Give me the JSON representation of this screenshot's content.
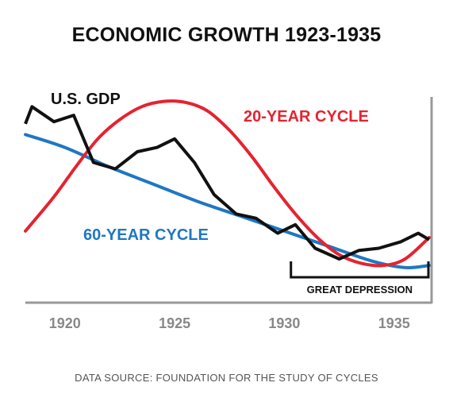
{
  "chart_data": {
    "type": "line",
    "title": "ECONOMIC GROWTH 1923-1935",
    "source": "DATA SOURCE: FOUNDATION FOR THE STUDY OF CYCLES",
    "x_ticks": [
      "1920",
      "1925",
      "1930",
      "1935"
    ],
    "x_tick_values": [
      1920,
      1925,
      1930,
      1935
    ],
    "xlim": [
      1918.2,
      1936.6
    ],
    "ylim": [
      0,
      10
    ],
    "grid": false,
    "legend": "inline labels",
    "series": [
      {
        "name": "U.S. GDP",
        "color": "#111111",
        "x": [
          1918.2,
          1918.5,
          1919.5,
          1920.4,
          1921.3,
          1922.3,
          1923.3,
          1924.2,
          1925.0,
          1925.9,
          1926.8,
          1927.8,
          1928.7,
          1929.7,
          1930.5,
          1931.4,
          1932.5,
          1933.4,
          1934.3,
          1935.3,
          1936.1,
          1936.6
        ],
        "values": [
          8.3,
          9.1,
          8.4,
          8.7,
          6.5,
          6.2,
          7.0,
          7.2,
          7.6,
          6.5,
          5.0,
          4.1,
          3.9,
          3.2,
          3.6,
          2.5,
          2.0,
          2.4,
          2.5,
          2.8,
          3.2,
          2.9
        ]
      },
      {
        "name": "20-YEAR CYCLE",
        "color": "#e52330",
        "x": [
          1918.2,
          1919.5,
          1920.5,
          1921.5,
          1922.5,
          1923.5,
          1924.5,
          1925.5,
          1926.5,
          1927.5,
          1928.5,
          1929.5,
          1930.5,
          1931.5,
          1932.5,
          1933.5,
          1934.5,
          1935.5,
          1936.6
        ],
        "values": [
          3.3,
          4.9,
          6.3,
          7.6,
          8.5,
          9.1,
          9.35,
          9.3,
          8.9,
          8.0,
          6.8,
          5.4,
          4.1,
          3.0,
          2.2,
          1.8,
          1.7,
          2.0,
          3.0
        ]
      },
      {
        "name": "60-YEAR CYCLE",
        "color": "#1f77c2",
        "x": [
          1918.2,
          1920.0,
          1922.0,
          1924.0,
          1926.0,
          1928.0,
          1930.0,
          1932.0,
          1934.0,
          1935.5,
          1936.6
        ],
        "values": [
          7.8,
          7.2,
          6.3,
          5.5,
          4.7,
          4.0,
          3.3,
          2.6,
          1.9,
          1.6,
          1.7
        ]
      }
    ],
    "annotations": [
      {
        "text": "GREAT DEPRESSION",
        "x_start": 1930.3,
        "x_end": 1936.6
      }
    ]
  }
}
